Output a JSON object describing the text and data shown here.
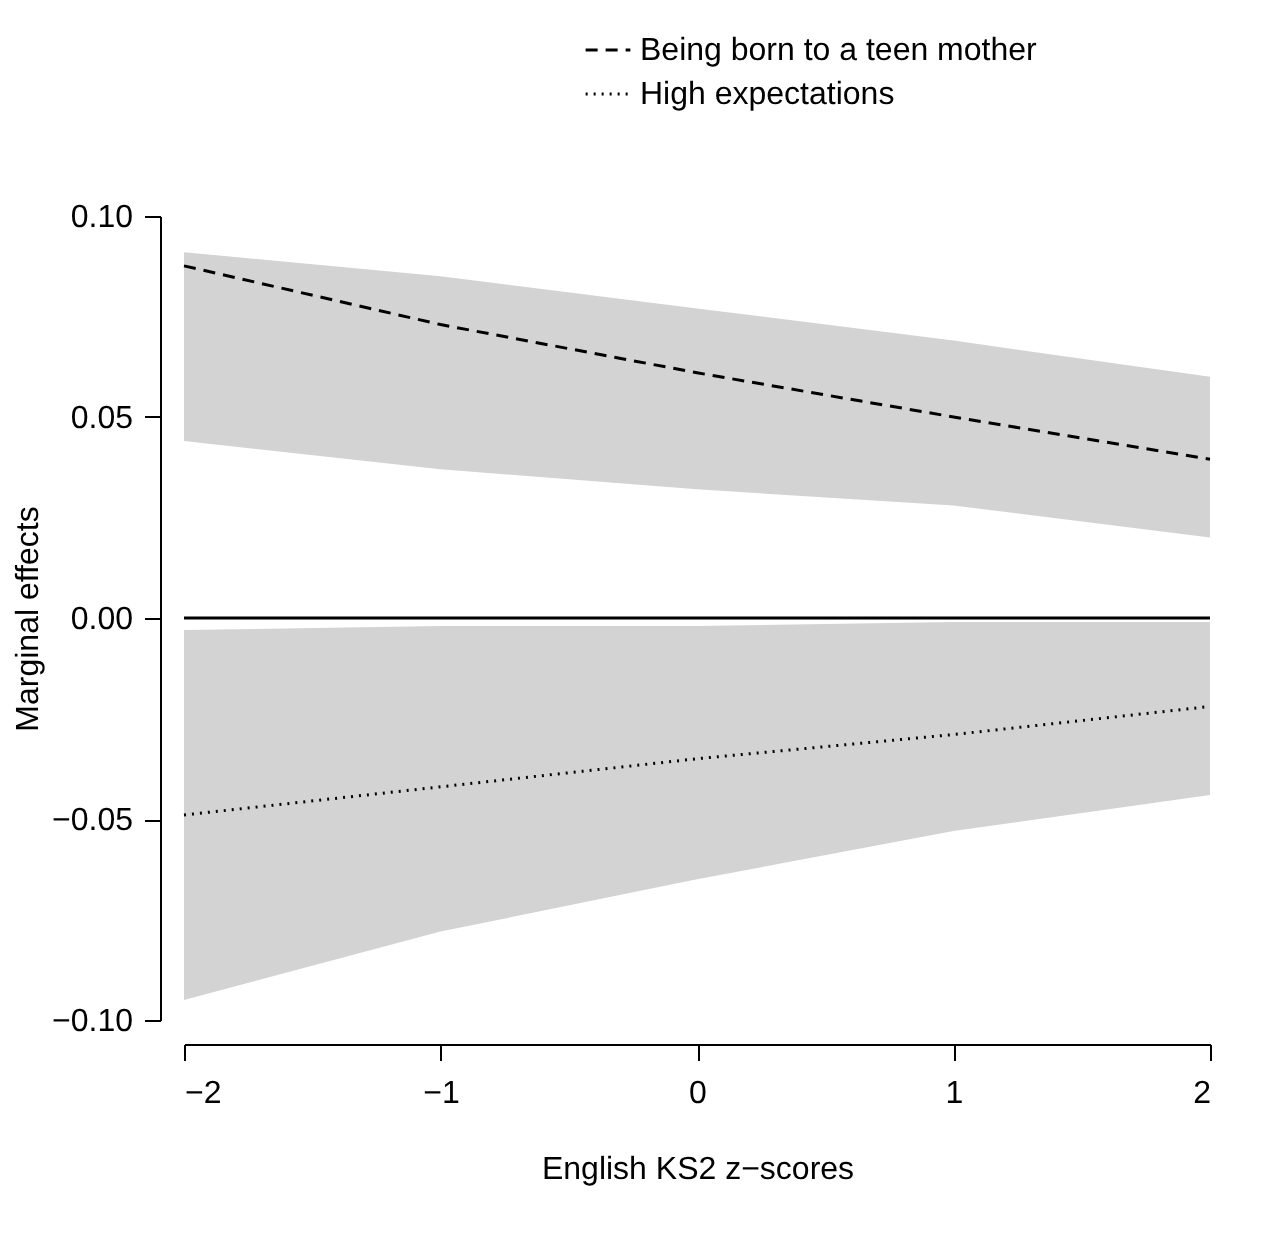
{
  "chart_data": {
    "type": "line",
    "xlabel": "English KS2 z−scores",
    "ylabel": "Marginal effects",
    "x": [
      -2,
      -1,
      0,
      1,
      2
    ],
    "series": [
      {
        "name": "Being born to a teen mother",
        "color": "#000000",
        "line_style": "dashed",
        "values": [
          0.0876,
          0.073,
          0.061,
          0.05,
          0.0395
        ],
        "lower": [
          0.044,
          0.037,
          0.032,
          0.028,
          0.02
        ],
        "upper": [
          0.091,
          0.085,
          0.077,
          0.069,
          0.06
        ]
      },
      {
        "name": "High expectations",
        "color": "#000000",
        "line_style": "dotted",
        "values": [
          -0.049,
          -0.042,
          -0.035,
          -0.029,
          -0.022
        ],
        "lower": [
          -0.095,
          -0.078,
          -0.065,
          -0.053,
          -0.044
        ],
        "upper": [
          -0.003,
          -0.002,
          -0.002,
          -0.001,
          -0.001
        ]
      }
    ],
    "xlim": [
      -2,
      2
    ],
    "ylim": [
      -0.1,
      0.1
    ],
    "xticks": [
      {
        "value": -2,
        "label": "−2"
      },
      {
        "value": -1,
        "label": "−1"
      },
      0,
      1,
      2
    ],
    "yticks": [
      {
        "value": -0.1,
        "label": "−0.10"
      },
      {
        "value": -0.05,
        "label": "−0.05"
      },
      {
        "value": 0,
        "label": "0.00"
      },
      {
        "value": 0.05,
        "label": "0.05"
      },
      {
        "value": 0.1,
        "label": "0.10"
      }
    ],
    "ref_lines": [
      {
        "axis": "y",
        "value": 0,
        "color": "#000000"
      }
    ],
    "grid": false,
    "legend": "top right"
  }
}
